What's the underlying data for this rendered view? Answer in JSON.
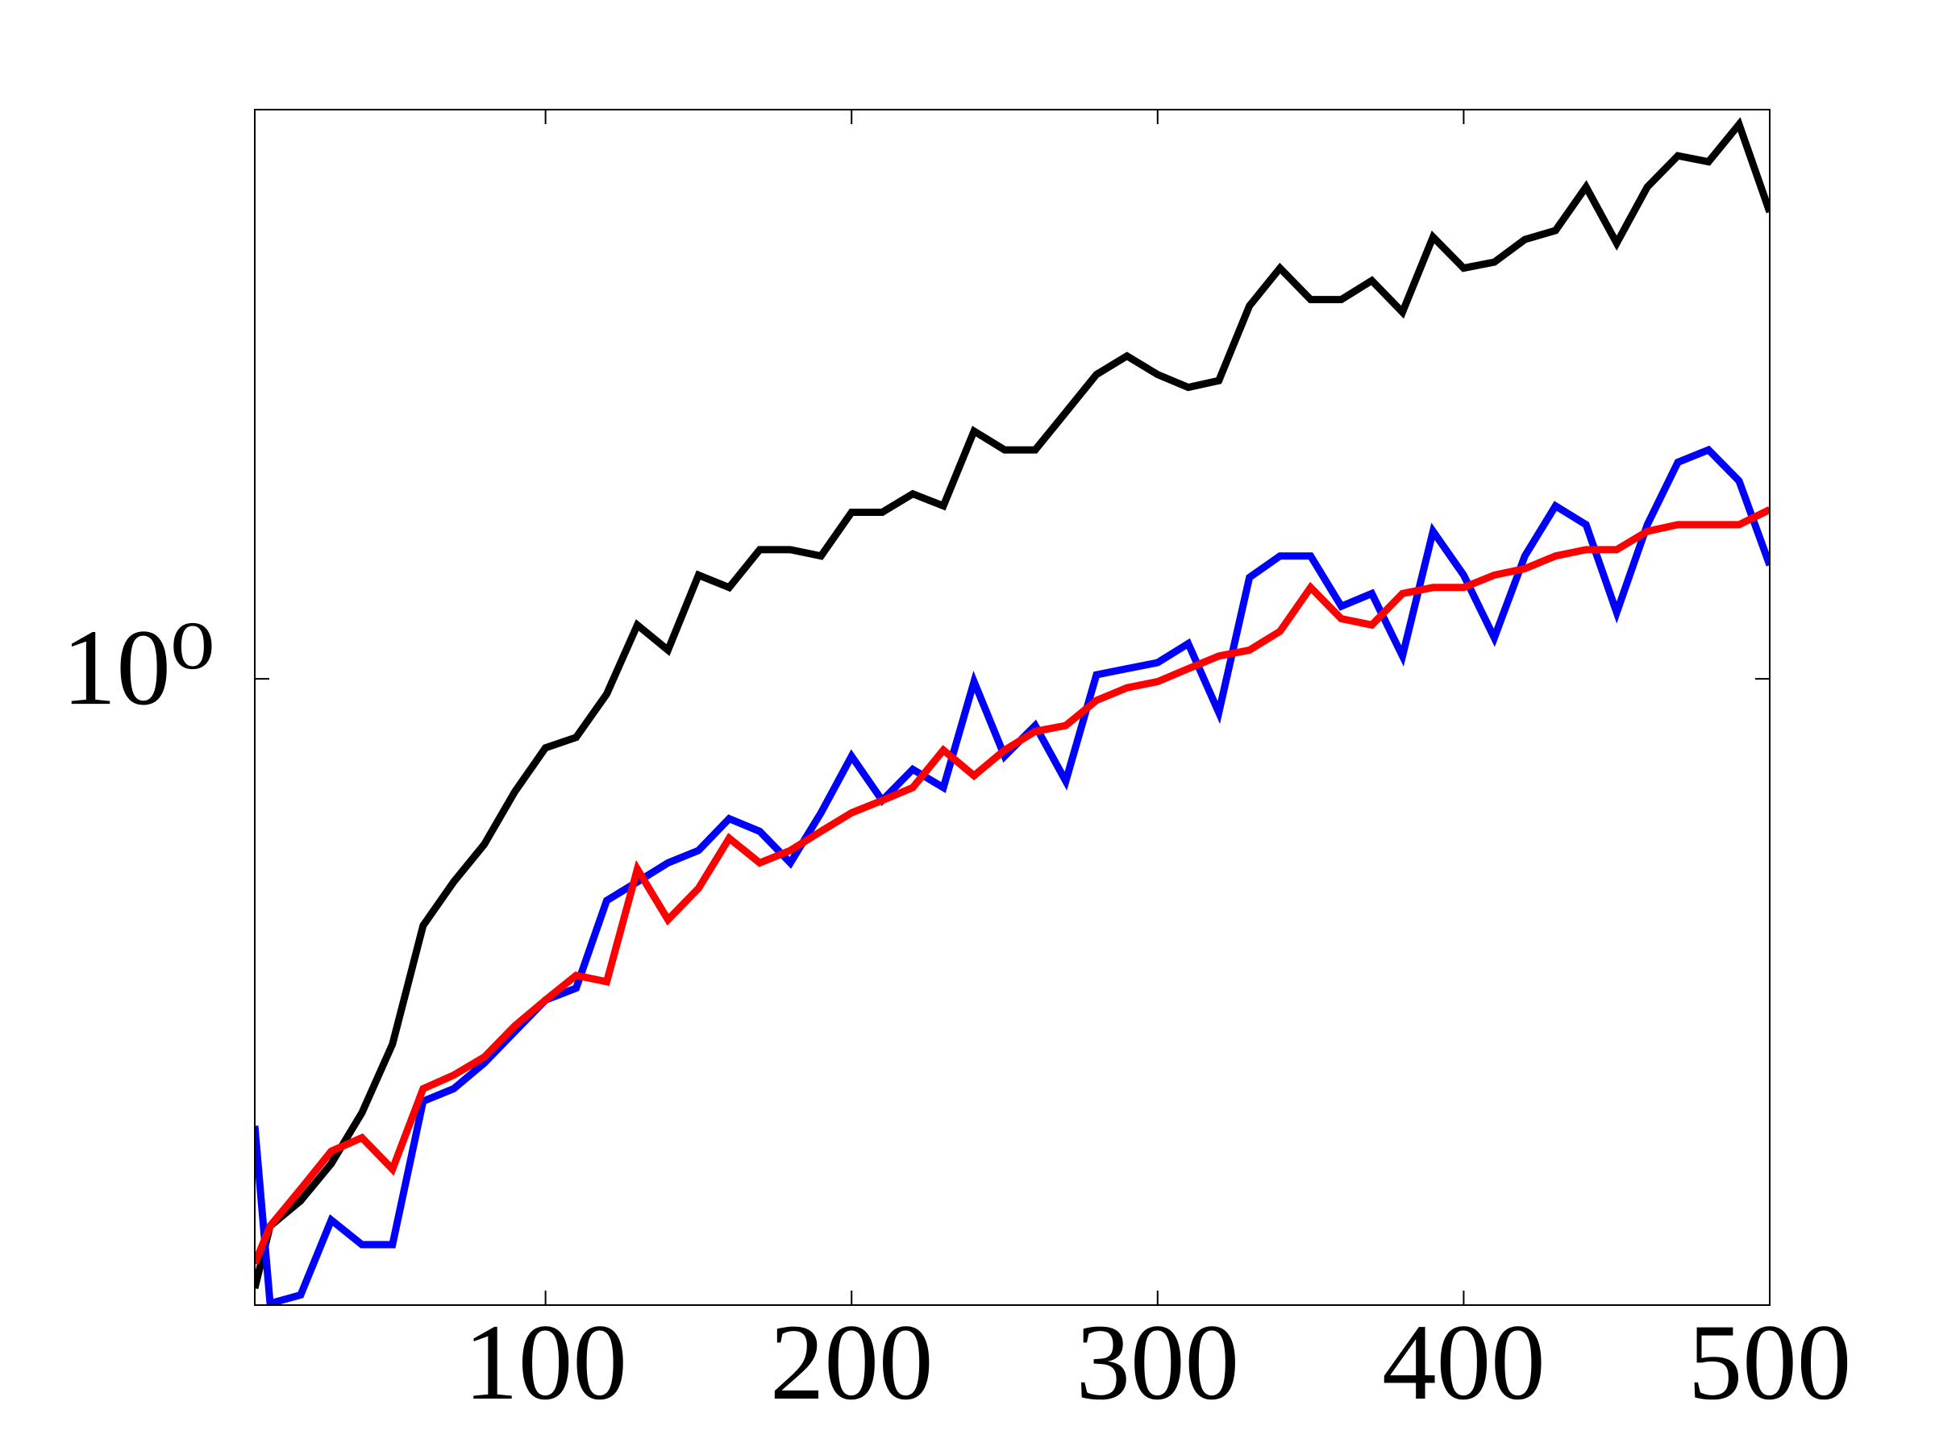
{
  "chart_data": {
    "type": "line",
    "log_y": true,
    "x": [
      5,
      10,
      20,
      30,
      40,
      50,
      60,
      70,
      80,
      90,
      100,
      110,
      120,
      130,
      140,
      150,
      160,
      170,
      180,
      190,
      200,
      210,
      220,
      230,
      240,
      250,
      260,
      270,
      280,
      290,
      300,
      310,
      320,
      330,
      340,
      350,
      360,
      370,
      380,
      390,
      400,
      410,
      420,
      430,
      440,
      450,
      460,
      470,
      480,
      490,
      500
    ],
    "series": [
      {
        "color": "#000000",
        "values": [
          0.41,
          0.449,
          0.466,
          0.492,
          0.53,
          0.586,
          0.697,
          0.743,
          0.785,
          0.848,
          0.904,
          0.918,
          0.978,
          1.082,
          1.043,
          1.164,
          1.143,
          1.208,
          1.208,
          1.197,
          1.276,
          1.276,
          1.311,
          1.288,
          1.437,
          1.398,
          1.398,
          1.477,
          1.561,
          1.604,
          1.561,
          1.532,
          1.547,
          1.726,
          1.824,
          1.742,
          1.742,
          1.791,
          1.71,
          1.909,
          1.824,
          1.84,
          1.902,
          1.927,
          2.054,
          1.892,
          2.054,
          2.15,
          2.131,
          2.251,
          1.98
        ]
      },
      {
        "color": "#0000ff",
        "values": [
          0.52,
          0.401,
          0.406,
          0.453,
          0.437,
          0.437,
          0.539,
          0.549,
          0.57,
          0.597,
          0.625,
          0.636,
          0.723,
          0.743,
          0.764,
          0.778,
          0.815,
          0.8,
          0.764,
          0.822,
          0.893,
          0.837,
          0.876,
          0.853,
          0.996,
          0.893,
          0.934,
          0.861,
          1.006,
          1.015,
          1.024,
          1.053,
          0.952,
          1.16,
          1.197,
          1.197,
          1.112,
          1.133,
          1.034,
          1.241,
          1.164,
          1.062,
          1.197,
          1.288,
          1.253,
          1.102,
          1.253,
          1.373,
          1.398,
          1.336,
          1.181
        ]
      },
      {
        "color": "#ff0000",
        "values": [
          0.425,
          0.449,
          0.474,
          0.501,
          0.511,
          0.488,
          0.549,
          0.56,
          0.575,
          0.602,
          0.625,
          0.648,
          0.642,
          0.757,
          0.703,
          0.736,
          0.792,
          0.764,
          0.778,
          0.8,
          0.822,
          0.837,
          0.853,
          0.901,
          0.868,
          0.901,
          0.926,
          0.934,
          0.969,
          0.987,
          0.996,
          1.015,
          1.034,
          1.043,
          1.072,
          1.143,
          1.092,
          1.082,
          1.133,
          1.143,
          1.143,
          1.164,
          1.175,
          1.197,
          1.208,
          1.208,
          1.241,
          1.253,
          1.253,
          1.253,
          1.281
        ]
      }
    ],
    "xlim": [
      5,
      500
    ],
    "xticks": [
      100,
      200,
      300,
      400,
      500
    ],
    "ylim": [
      0.4,
      2.3
    ],
    "yticks": [
      {
        "value": 1,
        "label": "10⁰"
      }
    ],
    "grid": false
  }
}
